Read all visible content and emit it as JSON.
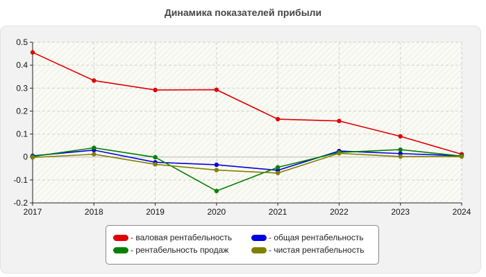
{
  "chart_data": {
    "type": "line",
    "title": "Динамика показателей прибыли",
    "xlabel": "",
    "ylabel": "",
    "x": [
      "2017",
      "2018",
      "2019",
      "2020",
      "2021",
      "2022",
      "2023",
      "2024"
    ],
    "ylim": [
      -0.2,
      0.5
    ],
    "yticks": [
      -0.2,
      -0.1,
      0,
      0.1,
      0.2,
      0.3,
      0.4,
      0.5
    ],
    "ytick_labels": [
      "-0.2",
      "-0.1",
      "0",
      "0.1",
      "0.2",
      "0.3",
      "0.4",
      "0.5"
    ],
    "grid": true,
    "legend_position": "bottom-center",
    "series": [
      {
        "name": "- валовая рентабельность",
        "color": "#e00000",
        "values": [
          0.456,
          0.333,
          0.292,
          0.293,
          0.165,
          0.157,
          0.09,
          0.012
        ]
      },
      {
        "name": "- общая рентабельность",
        "color": "#0000e0",
        "values": [
          0.005,
          0.03,
          -0.023,
          -0.034,
          -0.058,
          0.026,
          0.015,
          0.005
        ]
      },
      {
        "name": "- рентабельность продаж",
        "color": "#008000",
        "values": [
          0.002,
          0.04,
          -0.001,
          -0.148,
          -0.045,
          0.02,
          0.032,
          0.004
        ]
      },
      {
        "name": "- чистая рентабельность",
        "color": "#808000",
        "values": [
          -0.002,
          0.012,
          -0.032,
          -0.057,
          -0.07,
          0.016,
          0.002,
          0.002
        ]
      }
    ]
  }
}
